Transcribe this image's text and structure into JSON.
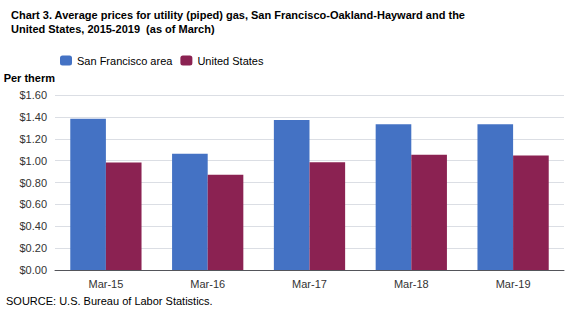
{
  "chart_data": {
    "type": "bar",
    "title": "Chart 3. Average prices for utility (piped) gas, San Francisco-Oakland-Hayward and the",
    "subtitle": "United States, 2015-2019  (as of March)",
    "ylabel": "Per therm",
    "annotations": [
      "SOURCE: U.S. Bureau of Labor Statistics."
    ],
    "categories": [
      "Mar-15",
      "Mar-16",
      "Mar-17",
      "Mar-18",
      "Mar-19"
    ],
    "series": [
      {
        "name": "San Francisco area",
        "color": "#4472C4",
        "values": [
          1.384,
          1.063,
          1.372,
          1.333,
          1.332
        ]
      },
      {
        "name": "United States",
        "color": "#8B2252",
        "values": [
          0.982,
          0.872,
          0.986,
          1.053,
          1.047
        ]
      }
    ],
    "ylim": [
      0.0,
      1.6
    ],
    "yticks": [
      {
        "value": 0.0,
        "label": "$0.00"
      },
      {
        "value": 0.2,
        "label": "$0.20"
      },
      {
        "value": 0.4,
        "label": "$0.40"
      },
      {
        "value": 0.6,
        "label": "$0.60"
      },
      {
        "value": 0.8,
        "label": "$0.80"
      },
      {
        "value": 1.0,
        "label": "$1.00"
      },
      {
        "value": 1.2,
        "label": "$1.20"
      },
      {
        "value": 1.4,
        "label": "$1.40"
      },
      {
        "value": 1.6,
        "label": "$1.60"
      }
    ],
    "grid": true,
    "legend": "upper left"
  }
}
